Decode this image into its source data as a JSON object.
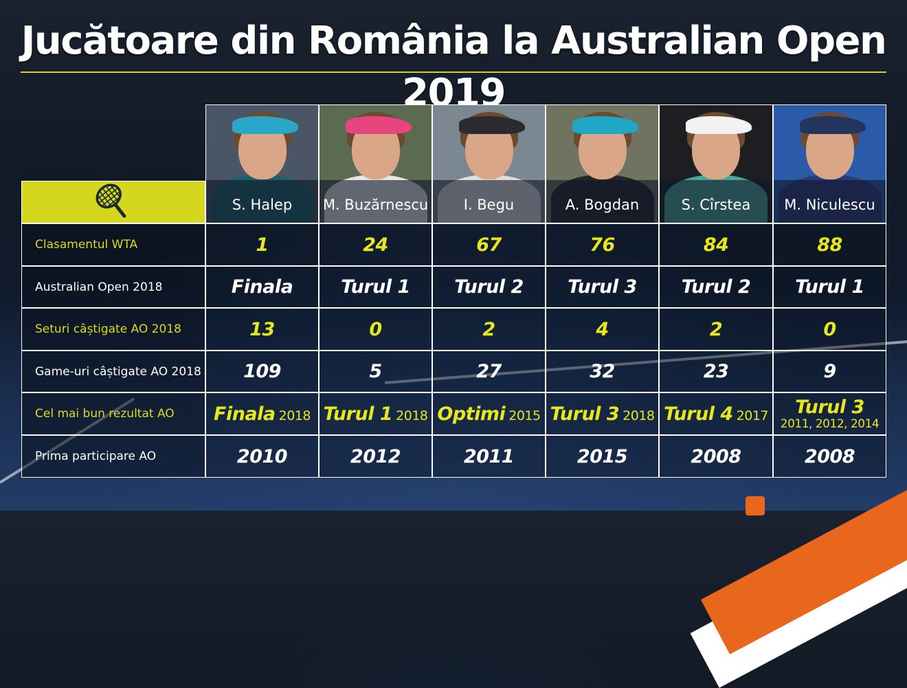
{
  "title": "Jucătoare din România la Australian Open 2019",
  "colors": {
    "accent": "#d4d71e",
    "value_yellow": "#e6e81d",
    "label_yellow": "#d8dc1f",
    "orange": "#e8671c"
  },
  "header_icon": "tennis-racket-icon",
  "players": [
    {
      "name": "S. Halep",
      "visor": "#2aa6c9",
      "shirt": "#1e5f6b",
      "bg": "#4a5666"
    },
    {
      "name": "M. Buzărnescu",
      "visor": "#e8447e",
      "shirt": "#e6e6e6",
      "bg": "#5b6b52"
    },
    {
      "name": "I. Begu",
      "visor": "#2b2b2f",
      "shirt": "#dedede",
      "bg": "#7b8791"
    },
    {
      "name": "A. Bogdan",
      "visor": "#1fa7c8",
      "shirt": "#25252a",
      "bg": "#6e7460"
    },
    {
      "name": "S. Cîrstea",
      "visor": "#f2f2f2",
      "shirt": "#4aa79a",
      "bg": "#1c1e22"
    },
    {
      "name": "M. Niculescu",
      "visor": "#24345e",
      "shirt": "#2c3c7a",
      "bg": "#2a5aa8"
    }
  ],
  "rows": [
    {
      "label": "Clasamentul WTA",
      "style": "yellow",
      "values": [
        "1",
        "24",
        "67",
        "76",
        "84",
        "88"
      ]
    },
    {
      "label": "Australian Open 2018",
      "style": "white",
      "values": [
        "Finala",
        "Turul 1",
        "Turul 2",
        "Turul 3",
        "Turul 2",
        "Turul 1"
      ]
    },
    {
      "label": "Seturi câștigate AO 2018",
      "style": "yellow",
      "values": [
        "13",
        "0",
        "2",
        "4",
        "2",
        "0"
      ]
    },
    {
      "label": "Game-uri câștigate AO 2018",
      "style": "white",
      "values": [
        "109",
        "5",
        "27",
        "32",
        "23",
        "9"
      ]
    },
    {
      "label": "Cel mai bun rezultat AO",
      "style": "yellow",
      "values": [
        {
          "main": "Finala",
          "year": "2018"
        },
        {
          "main": "Turul 1",
          "year": "2018"
        },
        {
          "main": "Optimi",
          "year": "2015"
        },
        {
          "main": "Turul 3",
          "year": "2018"
        },
        {
          "main": "Turul 4",
          "year": "2017"
        },
        {
          "main": "Turul 3",
          "years_below": "2011, 2012, 2014"
        }
      ]
    },
    {
      "label": "Prima participare AO",
      "style": "white",
      "values": [
        "2010",
        "2012",
        "2011",
        "2015",
        "2008",
        "2008"
      ]
    }
  ]
}
